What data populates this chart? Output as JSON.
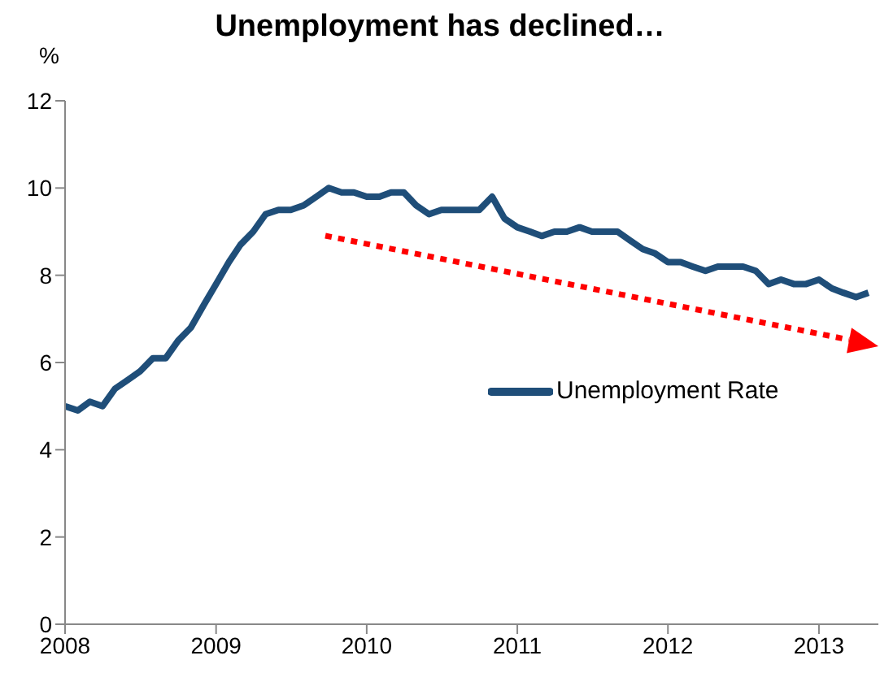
{
  "chart_data": {
    "type": "line",
    "title": "Unemployment has declined…",
    "ylabel": "%",
    "x": [
      "2008-01",
      "2008-02",
      "2008-03",
      "2008-04",
      "2008-05",
      "2008-06",
      "2008-07",
      "2008-08",
      "2008-09",
      "2008-10",
      "2008-11",
      "2008-12",
      "2009-01",
      "2009-02",
      "2009-03",
      "2009-04",
      "2009-05",
      "2009-06",
      "2009-07",
      "2009-08",
      "2009-09",
      "2009-10",
      "2009-11",
      "2009-12",
      "2010-01",
      "2010-02",
      "2010-03",
      "2010-04",
      "2010-05",
      "2010-06",
      "2010-07",
      "2010-08",
      "2010-09",
      "2010-10",
      "2010-11",
      "2010-12",
      "2011-01",
      "2011-02",
      "2011-03",
      "2011-04",
      "2011-05",
      "2011-06",
      "2011-07",
      "2011-08",
      "2011-09",
      "2011-10",
      "2011-11",
      "2011-12",
      "2012-01",
      "2012-02",
      "2012-03",
      "2012-04",
      "2012-05",
      "2012-06",
      "2012-07",
      "2012-08",
      "2012-09",
      "2012-10",
      "2012-11",
      "2012-12",
      "2013-01",
      "2013-02",
      "2013-03",
      "2013-04",
      "2013-05"
    ],
    "series": [
      {
        "name": "Unemployment Rate",
        "color": "#1f4e79",
        "values": [
          5.0,
          4.9,
          5.1,
          5.0,
          5.4,
          5.6,
          5.8,
          6.1,
          6.1,
          6.5,
          6.8,
          7.3,
          7.8,
          8.3,
          8.7,
          9.0,
          9.4,
          9.5,
          9.5,
          9.6,
          9.8,
          10.0,
          9.9,
          9.9,
          9.8,
          9.8,
          9.9,
          9.9,
          9.6,
          9.4,
          9.5,
          9.5,
          9.5,
          9.5,
          9.8,
          9.3,
          9.1,
          9.0,
          8.9,
          9.0,
          9.0,
          9.1,
          9.0,
          9.0,
          9.0,
          8.8,
          8.6,
          8.5,
          8.3,
          8.3,
          8.2,
          8.1,
          8.2,
          8.2,
          8.2,
          8.1,
          7.8,
          7.9,
          7.8,
          7.8,
          7.9,
          7.7,
          7.6,
          7.5,
          7.6
        ]
      }
    ],
    "xlim": [
      "2008-01",
      "2013-05-25"
    ],
    "xticks": [
      {
        "value": "2008-01",
        "label": "2008"
      },
      {
        "value": "2009-01",
        "label": "2009"
      },
      {
        "value": "2010-01",
        "label": "2010"
      },
      {
        "value": "2011-01",
        "label": "2011"
      },
      {
        "value": "2012-01",
        "label": "2012"
      },
      {
        "value": "2013-01",
        "label": "2013"
      }
    ],
    "ylim": [
      0,
      12
    ],
    "yticks": [
      0,
      2,
      4,
      6,
      8,
      10,
      12
    ],
    "legend": "right",
    "marker": "none",
    "line_style": "solid"
  }
}
